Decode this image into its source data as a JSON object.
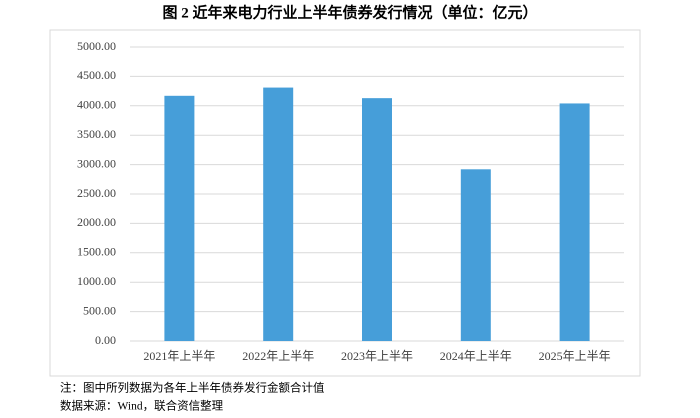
{
  "chart_data": {
    "type": "bar",
    "title": "图 2  近年来电力行业上半年债券发行情况（单位：亿元）",
    "categories": [
      "2021年上半年",
      "2022年上半年",
      "2023年上半年",
      "2024年上半年",
      "2025年上半年"
    ],
    "values": [
      4170,
      4310,
      4130,
      2920,
      4040
    ],
    "color": "#469ed9",
    "ylim": [
      0,
      5000
    ],
    "yticks": [
      {
        "value": 0,
        "label": "0.00"
      },
      {
        "value": 500,
        "label": "500.00"
      },
      {
        "value": 1000,
        "label": "1000.00"
      },
      {
        "value": 1500,
        "label": "1500.00"
      },
      {
        "value": 2000,
        "label": "2000.00"
      },
      {
        "value": 2500,
        "label": "2500.00"
      },
      {
        "value": 3000,
        "label": "3000.00"
      },
      {
        "value": 3500,
        "label": "3500.00"
      },
      {
        "value": 4000,
        "label": "4000.00"
      },
      {
        "value": 4500,
        "label": "4500.00"
      },
      {
        "value": 5000,
        "label": "5000.00"
      }
    ],
    "grid": true,
    "notes": [
      "注：图中所列数据为各年上半年债券发行金额合计值",
      "数据来源：Wind，联合资信整理"
    ]
  }
}
